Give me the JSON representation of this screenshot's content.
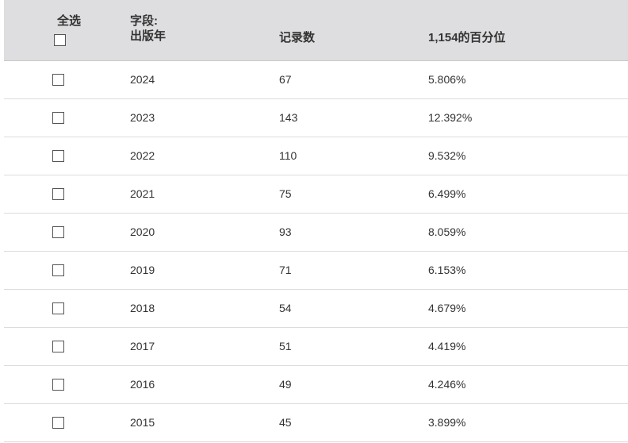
{
  "header": {
    "select_all": "全选",
    "field_label": "字段:",
    "field_name": "出版年",
    "count_label": "记录数",
    "percent_label": "1,154的百分位"
  },
  "rows": [
    {
      "year": "2024",
      "count": "67",
      "percent": "5.806%"
    },
    {
      "year": "2023",
      "count": "143",
      "percent": "12.392%"
    },
    {
      "year": "2022",
      "count": "110",
      "percent": "9.532%"
    },
    {
      "year": "2021",
      "count": "75",
      "percent": "6.499%"
    },
    {
      "year": "2020",
      "count": "93",
      "percent": "8.059%"
    },
    {
      "year": "2019",
      "count": "71",
      "percent": "6.153%"
    },
    {
      "year": "2018",
      "count": "54",
      "percent": "4.679%"
    },
    {
      "year": "2017",
      "count": "51",
      "percent": "4.419%"
    },
    {
      "year": "2016",
      "count": "49",
      "percent": "4.246%"
    },
    {
      "year": "2015",
      "count": "45",
      "percent": "3.899%"
    }
  ]
}
